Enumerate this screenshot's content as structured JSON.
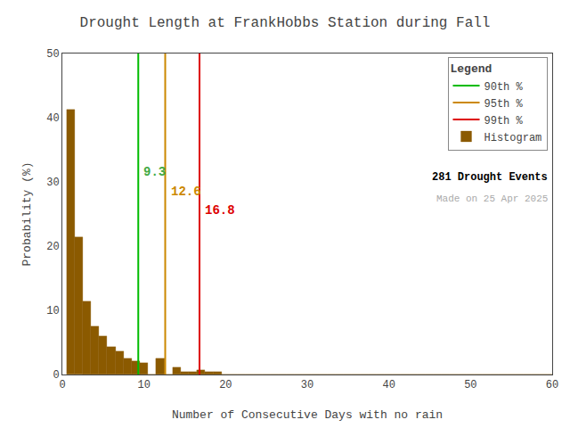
{
  "chart_data": {
    "type": "bar",
    "title": "Drought Length at FrankHobbs Station during Fall",
    "x_label": "Number of Consecutive Days with no rain",
    "y_label": "Probability (%)",
    "x": [
      1,
      2,
      3,
      4,
      5,
      6,
      7,
      8,
      9,
      10,
      11,
      12,
      13,
      14,
      15,
      16,
      17,
      18,
      19,
      20,
      21,
      22,
      23,
      24,
      25,
      26,
      27,
      28,
      29,
      30,
      31,
      32,
      33,
      34,
      35,
      36,
      37,
      38,
      39,
      40,
      41,
      42,
      43,
      44,
      45,
      46,
      47,
      48,
      49,
      50,
      51,
      52,
      53,
      54,
      55,
      56,
      57,
      58,
      59,
      60
    ],
    "series": [
      {
        "name": "Histogram",
        "color": "#8B5A00",
        "values": [
          41.3,
          21.4,
          11.4,
          7.5,
          6.0,
          4.3,
          3.6,
          2.5,
          2.1,
          1.8,
          0.0,
          2.5,
          0.0,
          1.1,
          0.4,
          0.4,
          0.7,
          0.4,
          0.4,
          0.0,
          0.0,
          0.0,
          0.0,
          0.0,
          0.0,
          0.0,
          0.0,
          0.0,
          0.0,
          0.0,
          0.0,
          0.0,
          0.0,
          0.0,
          0.0,
          0.0,
          0.0,
          0.0,
          0.0,
          0.0,
          0.0,
          0.0,
          0.0,
          0.0,
          0.0,
          0.0,
          0.0,
          0.0,
          0.0,
          0.0,
          0.0,
          0.0,
          0.0,
          0.0,
          0.0,
          0.0,
          0.0,
          0.0,
          0.0,
          0.0
        ]
      }
    ],
    "percentile_lines": [
      {
        "name": "90th %",
        "x": 9.3,
        "color": "#00BB00",
        "label_color": "#44AA44",
        "data_labels": true
      },
      {
        "name": "95th %",
        "x": 12.6,
        "color": "#CC8800",
        "label_color": "#CC8800",
        "data_labels": true
      },
      {
        "name": "99th %",
        "x": 16.8,
        "color": "#DD0000",
        "label_color": "#DD0000",
        "data_labels": true
      }
    ],
    "legend": "upper right",
    "legend_title": "Legend",
    "annotations": [
      "281 Drought Events",
      "Made on 25 Apr 2025"
    ],
    "xlim": [
      0,
      60
    ],
    "ylim": [
      0,
      50
    ],
    "xticks": [
      0,
      10,
      20,
      30,
      40,
      50,
      60
    ],
    "yticks": [
      0,
      10,
      20,
      30,
      40,
      50
    ],
    "grid": false
  }
}
